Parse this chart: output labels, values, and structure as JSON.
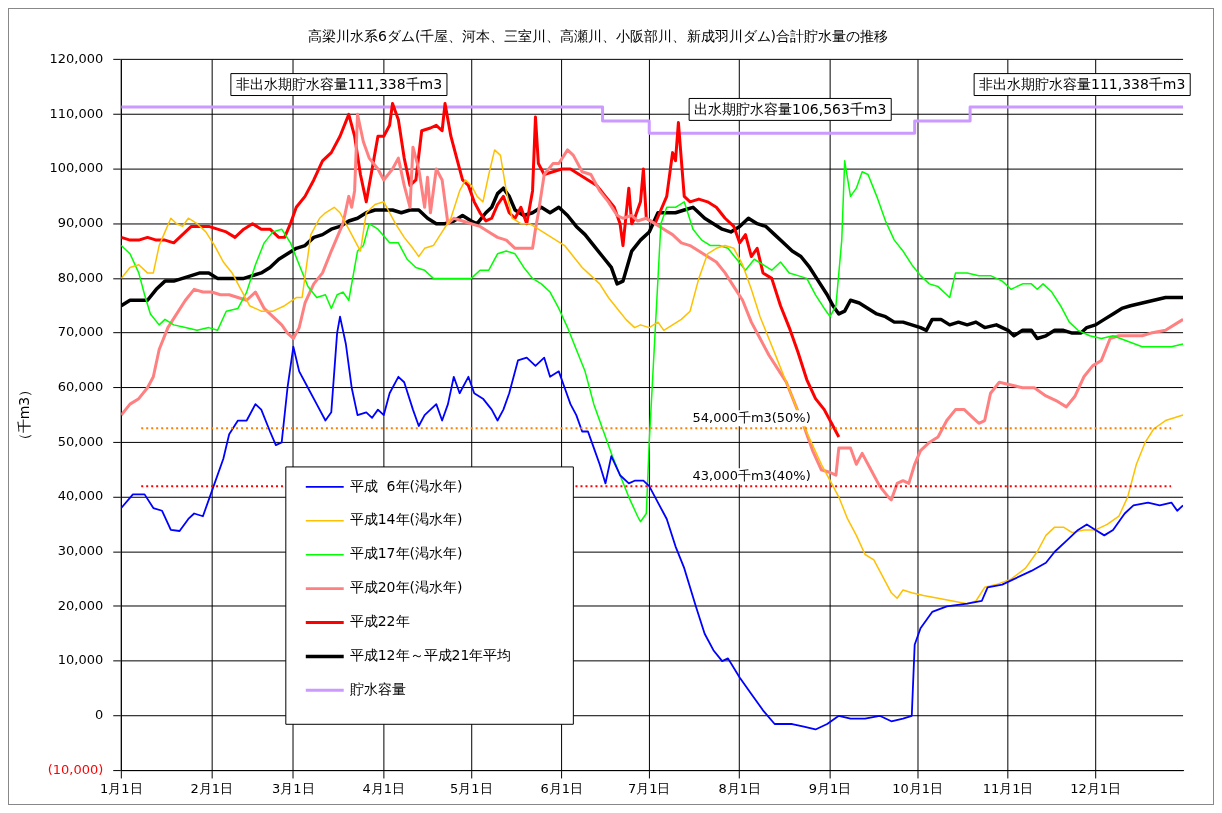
{
  "chart_data": {
    "type": "line",
    "title": "高梁川水系6ダム(千屋、河本、三室川、高瀬川、小阪部川、新成羽川ダム)合計貯水量の推移",
    "ylabel": "（千m3）",
    "xlim": [
      "--01-01",
      "--12-31"
    ],
    "xticks": [
      {
        "value": "--01-01",
        "label": "1月1日"
      },
      {
        "value": "--02-01",
        "label": "2月1日"
      },
      {
        "value": "--03-01",
        "label": "3月1日"
      },
      {
        "value": "--04-01",
        "label": "4月1日"
      },
      {
        "value": "--05-01",
        "label": "5月1日"
      },
      {
        "value": "--06-01",
        "label": "6月1日"
      },
      {
        "value": "--07-01",
        "label": "7月1日"
      },
      {
        "value": "--08-01",
        "label": "8月1日"
      },
      {
        "value": "--09-01",
        "label": "9月1日"
      },
      {
        "value": "--10-01",
        "label": "10月1日"
      },
      {
        "value": "--11-01",
        "label": "11月1日"
      },
      {
        "value": "--12-01",
        "label": "12月1日"
      }
    ],
    "ylim": [
      -10000,
      120000
    ],
    "yticks": [
      {
        "value": -10000,
        "label": "(10,000)"
      },
      {
        "value": 0,
        "label": "0"
      },
      {
        "value": 10000,
        "label": "10,000"
      },
      {
        "value": 20000,
        "label": "20,000"
      },
      {
        "value": 30000,
        "label": "30,000"
      },
      {
        "value": 40000,
        "label": "40,000"
      },
      {
        "value": 50000,
        "label": "50,000"
      },
      {
        "value": 60000,
        "label": "60,000"
      },
      {
        "value": 70000,
        "label": "70,000"
      },
      {
        "value": 80000,
        "label": "80,000"
      },
      {
        "value": 90000,
        "label": "90,000"
      },
      {
        "value": 100000,
        "label": "100,000"
      },
      {
        "value": 110000,
        "label": "110,000"
      },
      {
        "value": 120000,
        "label": "120,000"
      }
    ],
    "grid": true,
    "legend": "bottom left",
    "marker": "none",
    "line_style": "solid",
    "series": [
      {
        "name": "平成  6年(渇水年)",
        "color": "#0000ff",
        "x": [
          "--01-01",
          "--01-05",
          "--01-09",
          "--01-12",
          "--01-15",
          "--01-18",
          "--01-21",
          "--01-24",
          "--01-26",
          "--01-29",
          "--02-01",
          "--02-05",
          "--02-07",
          "--02-10",
          "--02-13",
          "--02-16",
          "--02-18",
          "--02-21",
          "--02-23",
          "--02-25",
          "--02-27",
          "--03-01",
          "--03-03",
          "--03-06",
          "--03-09",
          "--03-12",
          "--03-14",
          "--03-16",
          "--03-17",
          "--03-19",
          "--03-21",
          "--03-23",
          "--03-26",
          "--03-28",
          "--03-30",
          "--04-01",
          "--04-03",
          "--04-06",
          "--04-08",
          "--04-11",
          "--04-13",
          "--04-15",
          "--04-17",
          "--04-19",
          "--04-21",
          "--04-23",
          "--04-25",
          "--04-27",
          "--04-30",
          "--05-02",
          "--05-05",
          "--05-08",
          "--05-10",
          "--05-12",
          "--05-14",
          "--05-17",
          "--05-20",
          "--05-23",
          "--05-26",
          "--05-28",
          "--05-31",
          "--06-02",
          "--06-04",
          "--06-06",
          "--06-08",
          "--06-10",
          "--06-12",
          "--06-14",
          "--06-16",
          "--06-18",
          "--06-21",
          "--06-24",
          "--06-26",
          "--06-29",
          "--07-01",
          "--07-04",
          "--07-07",
          "--07-10",
          "--07-13",
          "--07-17",
          "--07-20",
          "--07-23",
          "--07-26",
          "--07-28",
          "--08-01",
          "--08-05",
          "--08-09",
          "--08-13",
          "--08-19",
          "--08-23",
          "--08-27",
          "--08-31",
          "--09-04",
          "--09-08",
          "--09-13",
          "--09-18",
          "--09-22",
          "--09-26",
          "--09-29",
          "--09-30",
          "--10-02",
          "--10-06",
          "--10-11",
          "--10-18",
          "--10-23",
          "--10-25",
          "--10-30",
          "--11-03",
          "--11-09",
          "--11-14",
          "--11-17",
          "--11-21",
          "--11-25",
          "--11-28",
          "--12-01",
          "--12-04",
          "--12-07",
          "--12-11",
          "--12-14",
          "--12-19",
          "--12-23",
          "--12-27",
          "--12-29",
          "--12-31"
        ],
        "values": [
          38000,
          40500,
          40500,
          38000,
          37500,
          34000,
          33800,
          36000,
          37000,
          36500,
          41000,
          47000,
          51500,
          54000,
          54000,
          57000,
          56000,
          52000,
          49500,
          50000,
          60000,
          67500,
          63000,
          60000,
          57000,
          54000,
          55500,
          70000,
          73000,
          68000,
          60000,
          55000,
          55500,
          54500,
          56000,
          55000,
          59000,
          62000,
          61000,
          56000,
          53000,
          55000,
          56000,
          57000,
          54000,
          57000,
          62000,
          59000,
          62000,
          59000,
          58000,
          56000,
          54000,
          56000,
          59000,
          65000,
          65500,
          64000,
          65500,
          62000,
          63000,
          60000,
          57000,
          55000,
          52000,
          52000,
          49000,
          46000,
          42500,
          47500,
          44000,
          42500,
          43000,
          43000,
          42000,
          39000,
          36000,
          31000,
          27000,
          20000,
          15000,
          12000,
          10000,
          10500,
          7000,
          4000,
          1000,
          -1500,
          -1500,
          -2000,
          -2500,
          -1500,
          0,
          -500,
          -500,
          0,
          -1000,
          -500,
          0,
          13000,
          16000,
          19000,
          20000,
          20500,
          21000,
          23500,
          24000,
          25000,
          26500,
          28000,
          30000,
          32000,
          34000,
          35000,
          34000,
          33000,
          34000,
          37000,
          38500,
          39000,
          38500,
          39000,
          37500,
          38500
        ]
      },
      {
        "name": "平成14年(渇水年)",
        "color": "#ffc000",
        "x": [
          "--01-01",
          "--01-04",
          "--01-07",
          "--01-10",
          "--01-12",
          "--01-14",
          "--01-16",
          "--01-18",
          "--01-20",
          "--01-22",
          "--01-24",
          "--01-27",
          "--01-30",
          "--02-02",
          "--02-05",
          "--02-08",
          "--02-11",
          "--02-14",
          "--02-18",
          "--02-22",
          "--02-26",
          "--03-02",
          "--03-04",
          "--03-07",
          "--03-10",
          "--03-12",
          "--03-15",
          "--03-17",
          "--03-20",
          "--03-22",
          "--03-24",
          "--03-26",
          "--03-29",
          "--04-01",
          "--04-03",
          "--04-05",
          "--04-08",
          "--04-11",
          "--04-13",
          "--04-15",
          "--04-18",
          "--04-21",
          "--04-24",
          "--04-27",
          "--04-29",
          "--05-01",
          "--05-03",
          "--05-05",
          "--05-07",
          "--05-09",
          "--05-11",
          "--05-13",
          "--05-15",
          "--05-18",
          "--05-21",
          "--05-24",
          "--05-27",
          "--05-30",
          "--06-02",
          "--06-05",
          "--06-08",
          "--06-11",
          "--06-14",
          "--06-17",
          "--06-20",
          "--06-23",
          "--06-26",
          "--06-28",
          "--07-01",
          "--07-04",
          "--07-06",
          "--07-09",
          "--07-12",
          "--07-15",
          "--07-18",
          "--07-21",
          "--07-24",
          "--07-27",
          "--07-30",
          "--08-02",
          "--08-05",
          "--08-08",
          "--08-11",
          "--08-14",
          "--08-17",
          "--08-20",
          "--08-23",
          "--08-26",
          "--08-29",
          "--09-01",
          "--09-04",
          "--09-07",
          "--09-10",
          "--09-13",
          "--09-16",
          "--09-19",
          "--09-22",
          "--09-24",
          "--09-26",
          "--09-29",
          "--10-03",
          "--10-08",
          "--10-13",
          "--10-18",
          "--10-21",
          "--10-24",
          "--10-28",
          "--11-02",
          "--11-07",
          "--11-11",
          "--11-14",
          "--11-17",
          "--11-20",
          "--11-23",
          "--11-27",
          "--12-01",
          "--12-05",
          "--12-09",
          "--12-12",
          "--12-15",
          "--12-18",
          "--12-21",
          "--12-25",
          "--12-31"
        ],
        "values": [
          80000,
          82000,
          82500,
          81000,
          81000,
          86000,
          88500,
          91000,
          90000,
          89500,
          91000,
          90000,
          88500,
          86000,
          83000,
          81000,
          78000,
          75000,
          74000,
          74000,
          75000,
          76500,
          76500,
          88000,
          91000,
          92000,
          93000,
          92000,
          89000,
          87000,
          85000,
          92000,
          93500,
          94000,
          92000,
          90000,
          87500,
          85500,
          84000,
          85500,
          86000,
          88500,
          91000,
          96000,
          98000,
          97000,
          95000,
          94000,
          99000,
          103500,
          102500,
          96000,
          91000,
          90000,
          90000,
          89000,
          88000,
          87000,
          86000,
          84000,
          82000,
          80500,
          79000,
          76500,
          74500,
          72500,
          71000,
          71500,
          71000,
          72000,
          70500,
          71500,
          72500,
          74000,
          80000,
          84500,
          85500,
          86000,
          85500,
          82500,
          78000,
          73000,
          69000,
          65000,
          61000,
          57000,
          53000,
          49500,
          46000,
          43000,
          40000,
          36000,
          33000,
          29500,
          28500,
          25500,
          22500,
          21500,
          23000,
          22500,
          22000,
          21500,
          21000,
          20500,
          21000,
          23500,
          24000,
          25000,
          27000,
          30000,
          33000,
          34500,
          34500,
          33500,
          34000,
          34000,
          35000,
          36500,
          40000,
          46000,
          50000,
          52500,
          54000,
          55000
        ]
      },
      {
        "name": "平成17年(渇水年)",
        "color": "#00ff00",
        "x": [
          "--01-01",
          "--01-04",
          "--01-07",
          "--01-09",
          "--01-11",
          "--01-14",
          "--01-16",
          "--01-19",
          "--01-23",
          "--01-27",
          "--01-31",
          "--02-03",
          "--02-06",
          "--02-10",
          "--02-13",
          "--02-16",
          "--02-19",
          "--02-22",
          "--02-25",
          "--02-28",
          "--03-03",
          "--03-06",
          "--03-09",
          "--03-12",
          "--03-14",
          "--03-16",
          "--03-18",
          "--03-20",
          "--03-23",
          "--03-25",
          "--03-27",
          "--03-30",
          "--04-03",
          "--04-06",
          "--04-09",
          "--04-12",
          "--04-15",
          "--04-18",
          "--04-21",
          "--04-24",
          "--04-28",
          "--05-01",
          "--05-04",
          "--05-07",
          "--05-10",
          "--05-13",
          "--05-16",
          "--05-19",
          "--05-22",
          "--05-25",
          "--05-28",
          "--05-31",
          "--06-03",
          "--06-06",
          "--06-09",
          "--06-12",
          "--06-15",
          "--06-18",
          "--06-21",
          "--06-24",
          "--06-27",
          "--06-28",
          "--06-30",
          "--07-01",
          "--07-03",
          "--07-05",
          "--07-07",
          "--07-10",
          "--07-13",
          "--07-16",
          "--07-19",
          "--07-22",
          "--07-25",
          "--07-28",
          "--07-31",
          "--08-03",
          "--08-06",
          "--08-09",
          "--08-12",
          "--08-15",
          "--08-18",
          "--08-21",
          "--08-24",
          "--08-27",
          "--08-30",
          "--09-01",
          "--09-03",
          "--09-05",
          "--09-06",
          "--09-08",
          "--09-10",
          "--09-12",
          "--09-14",
          "--09-17",
          "--09-20",
          "--09-23",
          "--09-26",
          "--09-29",
          "--10-02",
          "--10-05",
          "--10-08",
          "--10-12",
          "--10-14",
          "--10-18",
          "--10-22",
          "--10-26",
          "--10-30",
          "--11-02",
          "--11-06",
          "--11-09",
          "--11-11",
          "--11-13",
          "--11-16",
          "--11-19",
          "--11-22",
          "--11-25",
          "--11-29",
          "--12-03",
          "--12-07",
          "--12-12",
          "--12-17",
          "--12-23",
          "--12-27",
          "--12-31"
        ],
        "values": [
          86000,
          84500,
          81000,
          77000,
          73500,
          71500,
          72500,
          71500,
          71000,
          70500,
          71000,
          70500,
          74000,
          74500,
          77500,
          82500,
          86500,
          88500,
          89000,
          86500,
          82500,
          78500,
          76500,
          77000,
          74500,
          77000,
          77500,
          76000,
          85000,
          86000,
          90000,
          89000,
          86500,
          86500,
          83500,
          82000,
          81500,
          80000,
          80000,
          80000,
          80000,
          80000,
          81500,
          81500,
          84500,
          85000,
          84500,
          82000,
          80000,
          79000,
          77500,
          74500,
          71000,
          67000,
          63000,
          57000,
          52500,
          48000,
          44000,
          40000,
          36500,
          35500,
          37000,
          50000,
          70000,
          90000,
          93000,
          93000,
          94000,
          89000,
          87000,
          86000,
          86000,
          85500,
          83500,
          81500,
          83500,
          82500,
          81500,
          83000,
          81000,
          80500,
          80000,
          77000,
          74500,
          73000,
          75000,
          87000,
          101500,
          95000,
          96500,
          99500,
          99000,
          95000,
          90500,
          87000,
          85000,
          82500,
          80500,
          79000,
          78500,
          76500,
          81000,
          81000,
          80500,
          80500,
          79500,
          78000,
          79000,
          79000,
          78000,
          79000,
          77500,
          75000,
          72000,
          70500,
          69500,
          69000,
          69500,
          68500,
          67500,
          67500,
          67500,
          68000
        ]
      },
      {
        "name": "平成20年(渇水年)",
        "color": "#ff8080",
        "x": [
          "--01-01",
          "--01-04",
          "--01-07",
          "--01-10",
          "--01-12",
          "--01-14",
          "--01-17",
          "--01-20",
          "--01-23",
          "--01-26",
          "--01-29",
          "--02-01",
          "--02-04",
          "--02-07",
          "--02-10",
          "--02-13",
          "--02-16",
          "--02-19",
          "--02-22",
          "--02-25",
          "--02-27",
          "--03-01",
          "--03-03",
          "--03-05",
          "--03-08",
          "--03-11",
          "--03-14",
          "--03-16",
          "--03-18",
          "--03-20",
          "--03-21",
          "--03-22",
          "--03-23",
          "--03-25",
          "--03-27",
          "--03-30",
          "--04-01",
          "--04-04",
          "--04-06",
          "--04-08",
          "--04-10",
          "--04-11",
          "--04-13",
          "--04-15",
          "--04-16",
          "--04-17",
          "--04-19",
          "--04-21",
          "--04-23",
          "--04-25",
          "--04-28",
          "--05-01",
          "--05-04",
          "--05-07",
          "--05-10",
          "--05-13",
          "--05-16",
          "--05-19",
          "--05-22",
          "--05-23",
          "--05-24",
          "--05-26",
          "--05-29",
          "--05-31",
          "--06-03",
          "--06-05",
          "--06-08",
          "--06-11",
          "--06-14",
          "--06-17",
          "--06-20",
          "--06-22",
          "--06-25",
          "--06-27",
          "--06-30",
          "--07-03",
          "--07-06",
          "--07-09",
          "--07-12",
          "--07-15",
          "--07-18",
          "--07-21",
          "--07-24",
          "--07-27",
          "--07-30",
          "--08-02",
          "--08-05",
          "--08-08",
          "--08-11",
          "--08-14",
          "--08-17",
          "--08-20",
          "--08-23",
          "--08-26",
          "--08-29",
          "--09-01",
          "--09-03",
          "--09-04",
          "--09-06",
          "--09-08",
          "--09-10",
          "--09-12",
          "--09-15",
          "--09-18",
          "--09-21",
          "--09-22",
          "--09-24",
          "--09-26",
          "--09-28",
          "--09-30",
          "--10-02",
          "--10-05",
          "--10-08",
          "--10-11",
          "--10-14",
          "--10-17",
          "--10-20",
          "--10-22",
          "--10-24",
          "--10-26",
          "--10-29",
          "--11-02",
          "--11-06",
          "--11-10",
          "--11-14",
          "--11-18",
          "--11-21",
          "--11-24",
          "--11-27",
          "--11-30",
          "--12-03",
          "--12-06",
          "--12-09",
          "--12-12",
          "--12-17",
          "--12-20",
          "--12-25",
          "--12-31"
        ],
        "values": [
          55000,
          57000,
          58000,
          60000,
          62000,
          67000,
          71000,
          73500,
          76000,
          78000,
          77500,
          77500,
          77000,
          77000,
          76500,
          76000,
          77500,
          74500,
          73000,
          71500,
          70000,
          69000,
          71000,
          75500,
          79000,
          81000,
          85000,
          87500,
          90000,
          95000,
          93000,
          96000,
          110000,
          105000,
          102000,
          100000,
          98000,
          100000,
          102000,
          97000,
          93000,
          104000,
          100000,
          93000,
          98500,
          92000,
          100000,
          98000,
          90000,
          91000,
          90500,
          90000,
          89500,
          88500,
          87500,
          87000,
          85500,
          85500,
          85500,
          89000,
          92000,
          99000,
          101000,
          101000,
          103500,
          102500,
          99500,
          99000,
          96000,
          94000,
          91500,
          91000,
          91500,
          90500,
          91000,
          90000,
          89000,
          88000,
          86500,
          86000,
          85000,
          84000,
          83000,
          81000,
          78500,
          76000,
          72000,
          69000,
          66000,
          63500,
          61000,
          57000,
          53000,
          48500,
          45000,
          44500,
          44000,
          49000,
          49000,
          49000,
          46000,
          48000,
          45000,
          42000,
          40000,
          39500,
          42500,
          43000,
          42500,
          46000,
          48500,
          50000,
          51000,
          54000,
          56000,
          56000,
          54500,
          53500,
          54000,
          59000,
          61000,
          60500,
          60000,
          60000,
          58500,
          57500,
          56500,
          58500,
          62000,
          64000,
          65000,
          69000,
          69500,
          69500,
          69500,
          70000,
          70500,
          72500
        ]
      },
      {
        "name": "平成22年",
        "color": "#ff0000",
        "x": [
          "--01-01",
          "--01-04",
          "--01-07",
          "--01-10",
          "--01-13",
          "--01-16",
          "--01-19",
          "--01-22",
          "--01-25",
          "--01-28",
          "--01-31",
          "--02-03",
          "--02-06",
          "--02-09",
          "--02-12",
          "--02-15",
          "--02-18",
          "--02-21",
          "--02-24",
          "--02-26",
          "--02-28",
          "--03-02",
          "--03-05",
          "--03-08",
          "--03-11",
          "--03-14",
          "--03-17",
          "--03-20",
          "--03-22",
          "--03-24",
          "--03-26",
          "--03-28",
          "--03-30",
          "--04-01",
          "--04-03",
          "--04-04",
          "--04-06",
          "--04-08",
          "--04-10",
          "--04-12",
          "--04-14",
          "--04-17",
          "--04-19",
          "--04-21",
          "--04-22",
          "--04-24",
          "--04-26",
          "--04-28",
          "--04-30",
          "--05-02",
          "--05-04",
          "--05-06",
          "--05-08",
          "--05-10",
          "--05-12",
          "--05-14",
          "--05-16",
          "--05-18",
          "--05-20",
          "--05-22",
          "--05-23",
          "--05-24",
          "--05-26",
          "--05-29",
          "--06-01",
          "--06-04",
          "--06-07",
          "--06-10",
          "--06-13",
          "--06-16",
          "--06-19",
          "--06-21",
          "--06-22",
          "--06-24",
          "--06-25",
          "--06-26",
          "--06-28",
          "--06-29",
          "--06-30",
          "--07-03",
          "--07-05",
          "--07-07",
          "--07-09",
          "--07-10",
          "--07-11",
          "--07-13",
          "--07-15",
          "--07-18",
          "--07-21",
          "--07-24",
          "--07-27",
          "--07-30",
          "--08-01",
          "--08-03",
          "--08-05",
          "--08-07",
          "--08-09",
          "--08-12",
          "--08-15",
          "--08-18",
          "--08-21",
          "--08-24",
          "--08-27",
          "--08-30",
          "--09-02",
          "--09-04"
        ],
        "values": [
          87500,
          87000,
          87000,
          87500,
          87000,
          87000,
          86500,
          88000,
          89500,
          89500,
          89500,
          89000,
          88500,
          87500,
          89000,
          90000,
          89000,
          89000,
          87500,
          87500,
          90000,
          93000,
          95000,
          98000,
          101500,
          103000,
          106000,
          110000,
          106000,
          99000,
          94000,
          100000,
          106000,
          106000,
          108000,
          112000,
          109000,
          102000,
          97000,
          98000,
          107000,
          107500,
          108000,
          107000,
          112000,
          106000,
          102000,
          98000,
          97000,
          94000,
          92000,
          90500,
          91000,
          93500,
          95000,
          92000,
          91000,
          93000,
          90000,
          96000,
          109500,
          101000,
          99000,
          99500,
          100000,
          100000,
          99000,
          98000,
          97000,
          95000,
          93000,
          90000,
          86000,
          96500,
          90000,
          91000,
          94000,
          100000,
          91000,
          90000,
          92500,
          95000,
          103000,
          101500,
          108500,
          95000,
          94000,
          94500,
          94000,
          93000,
          91000,
          89500,
          86500,
          88000,
          84000,
          85500,
          81000,
          80000,
          75000,
          71000,
          66500,
          61500,
          58000,
          56000,
          53000,
          51000
        ]
      },
      {
        "name": "平成12年～平成21年平均",
        "color": "#000000",
        "x": [
          "--01-01",
          "--01-04",
          "--01-07",
          "--01-10",
          "--01-13",
          "--01-16",
          "--01-19",
          "--01-22",
          "--01-25",
          "--01-28",
          "--01-31",
          "--02-03",
          "--02-06",
          "--02-09",
          "--02-12",
          "--02-15",
          "--02-18",
          "--02-21",
          "--02-24",
          "--02-27",
          "--03-02",
          "--03-05",
          "--03-08",
          "--03-11",
          "--03-14",
          "--03-17",
          "--03-20",
          "--03-23",
          "--03-26",
          "--03-29",
          "--04-01",
          "--04-04",
          "--04-07",
          "--04-10",
          "--04-13",
          "--04-16",
          "--04-19",
          "--04-22",
          "--04-25",
          "--04-28",
          "--05-01",
          "--05-03",
          "--05-06",
          "--05-08",
          "--05-10",
          "--05-12",
          "--05-14",
          "--05-16",
          "--05-19",
          "--05-22",
          "--05-25",
          "--05-28",
          "--05-31",
          "--06-03",
          "--06-06",
          "--06-09",
          "--06-12",
          "--06-15",
          "--06-18",
          "--06-20",
          "--06-22",
          "--06-25",
          "--06-28",
          "--07-01",
          "--07-04",
          "--07-07",
          "--07-10",
          "--07-13",
          "--07-16",
          "--07-18",
          "--07-20",
          "--07-23",
          "--07-26",
          "--07-29",
          "--08-01",
          "--08-04",
          "--08-07",
          "--08-10",
          "--08-13",
          "--08-16",
          "--08-19",
          "--08-22",
          "--08-25",
          "--08-28",
          "--08-31",
          "--09-02",
          "--09-04",
          "--09-06",
          "--09-08",
          "--09-11",
          "--09-14",
          "--09-17",
          "--09-20",
          "--09-23",
          "--09-26",
          "--09-29",
          "--10-02",
          "--10-04",
          "--10-06",
          "--10-09",
          "--10-12",
          "--10-15",
          "--10-18",
          "--10-21",
          "--10-24",
          "--10-28",
          "--11-01",
          "--11-03",
          "--11-06",
          "--11-09",
          "--11-11",
          "--11-14",
          "--11-17",
          "--11-20",
          "--11-23",
          "--11-26",
          "--11-28",
          "--12-01",
          "--12-04",
          "--12-07",
          "--12-10",
          "--12-13",
          "--12-17",
          "--12-21",
          "--12-25",
          "--12-29",
          "--12-31"
        ],
        "values": [
          75000,
          76000,
          76000,
          76000,
          78000,
          79500,
          79500,
          80000,
          80500,
          81000,
          81000,
          80000,
          80000,
          80000,
          80000,
          80500,
          81000,
          82000,
          83500,
          84500,
          85500,
          86000,
          87500,
          88000,
          89000,
          89500,
          90500,
          91000,
          92000,
          92500,
          92500,
          92500,
          92000,
          92500,
          92500,
          91000,
          90000,
          90000,
          90500,
          91500,
          90500,
          90000,
          92000,
          93000,
          95500,
          96500,
          95000,
          92500,
          91500,
          92000,
          93000,
          92000,
          93000,
          91500,
          89500,
          88000,
          86000,
          84000,
          82000,
          79000,
          79500,
          85000,
          87000,
          88500,
          92000,
          92000,
          92000,
          92500,
          93000,
          92000,
          91000,
          90000,
          89000,
          88500,
          89500,
          91000,
          90000,
          89500,
          88000,
          86500,
          85000,
          84000,
          82000,
          79500,
          77000,
          75000,
          73500,
          74000,
          76000,
          75500,
          74500,
          73500,
          73000,
          72000,
          72000,
          71500,
          71000,
          70500,
          72500,
          72500,
          71500,
          72000,
          71500,
          72000,
          71000,
          71500,
          70500,
          69500,
          70500,
          70500,
          69000,
          69500,
          70500,
          70500,
          70000,
          70000,
          71000,
          71500,
          72500,
          73500,
          74500,
          75000,
          75500,
          76000,
          76500,
          76500,
          76500
        ]
      },
      {
        "name": "貯水容量",
        "color": "#cc99ff",
        "x": [
          "--01-01",
          "--06-15",
          "--06-15",
          "--07-01",
          "--07-01",
          "--09-30",
          "--09-30",
          "--10-19",
          "--10-19",
          "--12-31"
        ],
        "values": [
          111338,
          111338,
          108800,
          108800,
          106563,
          106563,
          108800,
          108800,
          111338,
          111338
        ]
      }
    ],
    "ref_lines": [
      {
        "axis": "y",
        "value": 52600,
        "label": "54,000千m3(50%)",
        "color": "#ff8000",
        "line_style": "dotted"
      },
      {
        "axis": "y",
        "value": 42000,
        "label": "43,000千m3(40%)",
        "color": "#ff0000",
        "line_style": "dotted"
      }
    ],
    "annotations": [
      "非出水期貯水容量111,338千m3",
      "出水期貯水容量106,563千m3",
      "非出水期貯水容量111,338千m3"
    ]
  }
}
